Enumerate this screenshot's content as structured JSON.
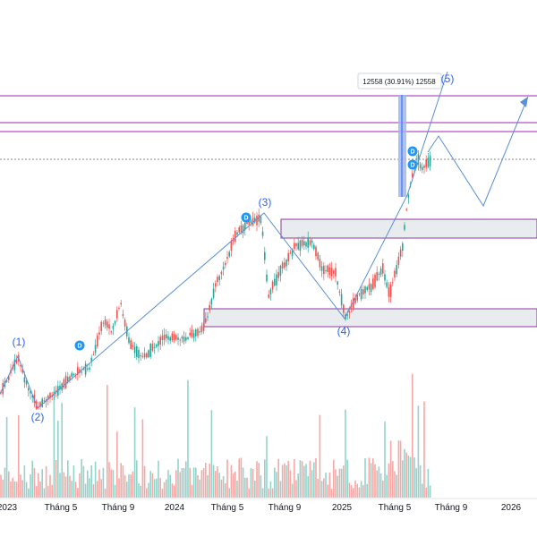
{
  "chart_data": {
    "type": "candlestick",
    "x_tick_labels": [
      "2023",
      "Tháng 5",
      "Tháng 9",
      "2024",
      "Tháng 5",
      "Tháng 9",
      "2025",
      "Tháng 5",
      "Tháng 9",
      "2026"
    ],
    "wave_labels": [
      "(1)",
      "(2)",
      "(3)",
      "(4)",
      "(5)"
    ],
    "measure_tooltip": "12558 (30.91%) 12558",
    "dividend_badge": "D",
    "colors": {
      "up": "#26a69a",
      "down": "#ef5350",
      "volume_up": "#93d3ca",
      "volume_down": "#f5a8a5",
      "resistance_line": "#9c27b0",
      "wave_line": "#5b8fd6",
      "measure_fill": "#9fb8ea",
      "zone_fill": "#e9ecef",
      "zone_border": "#8e3a9e",
      "wave_label": "#2962ff",
      "badge": "#2196f3"
    }
  }
}
